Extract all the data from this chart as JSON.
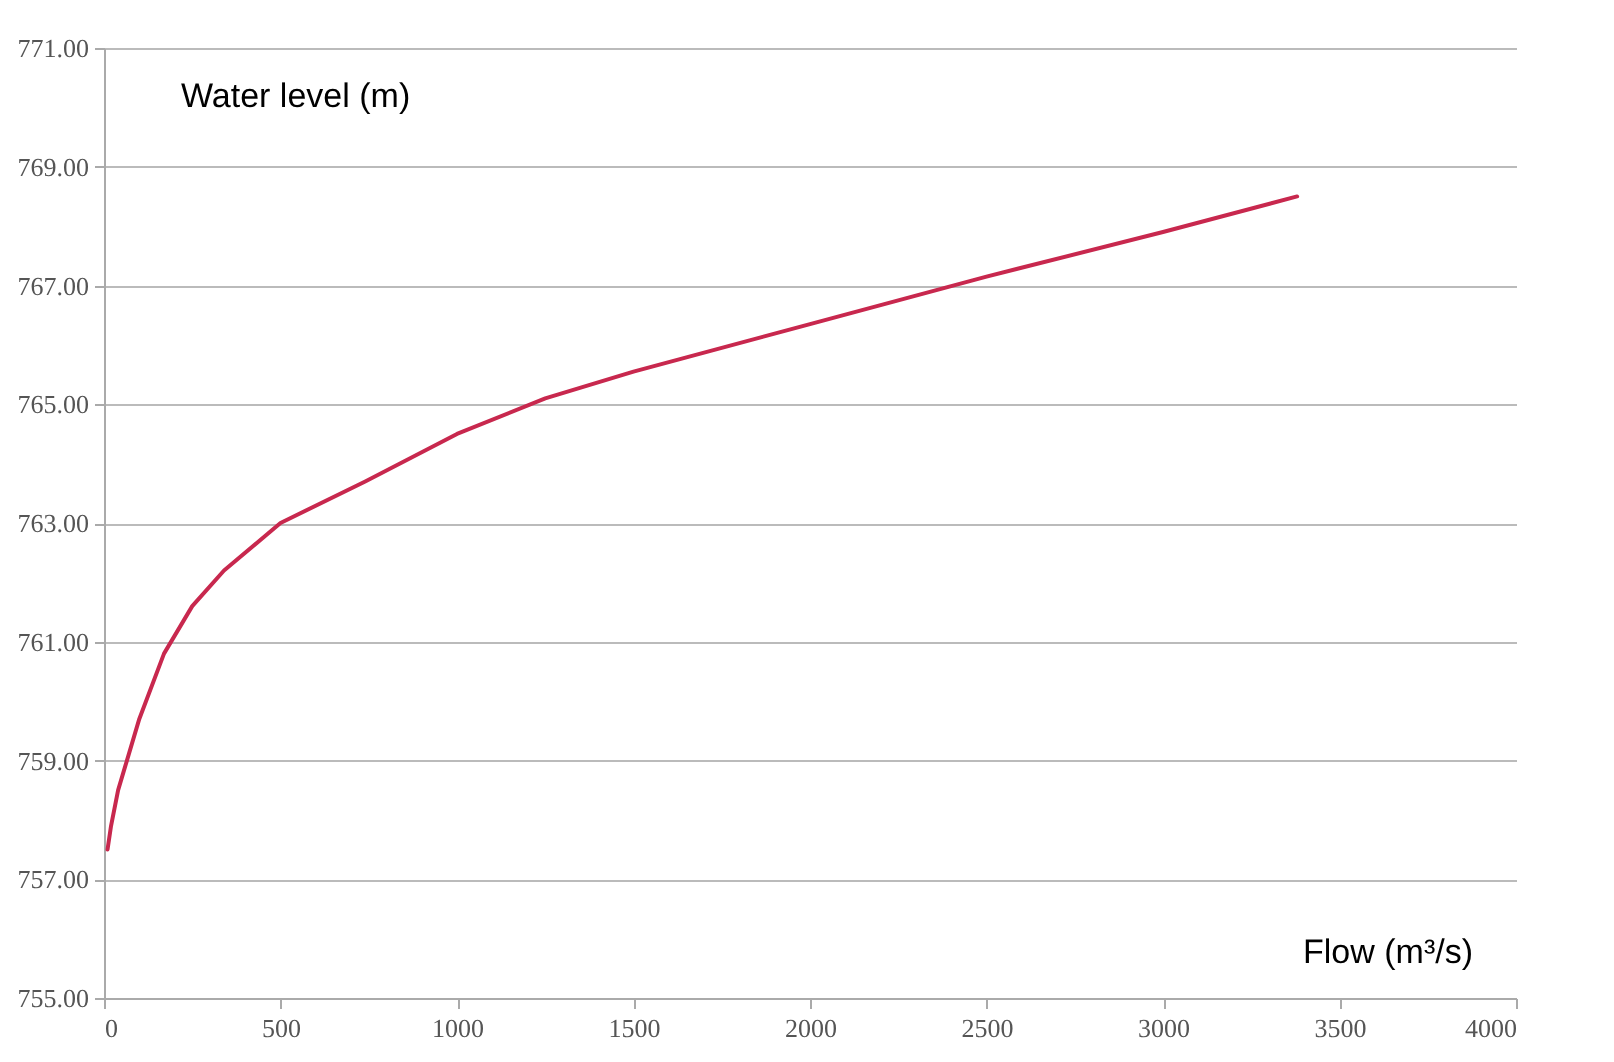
{
  "chart_data": {
    "type": "line",
    "xlabel": "Flow (m³/s)",
    "ylabel": "Water level (m)",
    "x": [
      10,
      20,
      40,
      60,
      100,
      170,
      250,
      340,
      500,
      740,
      1000,
      1250,
      1500,
      2000,
      2500,
      3000,
      3380
    ],
    "series": [
      {
        "color": "#c8284e",
        "values": [
          757.5,
          757.9,
          758.5,
          758.9,
          759.7,
          760.8,
          761.6,
          762.2,
          763.0,
          763.7,
          764.5,
          765.1,
          765.55,
          766.35,
          767.15,
          767.9,
          768.5
        ]
      }
    ],
    "xlim": [
      0,
      4000
    ],
    "xticks": [
      0,
      500,
      1000,
      1500,
      2000,
      2500,
      3000,
      3500,
      4000
    ],
    "ylim": [
      755,
      771
    ],
    "yticks": [
      {
        "value": 755,
        "label": "755.00"
      },
      {
        "value": 757,
        "label": "757.00"
      },
      {
        "value": 759,
        "label": "759.00"
      },
      {
        "value": 761,
        "label": "761.00"
      },
      {
        "value": 763,
        "label": "763.00"
      },
      {
        "value": 765,
        "label": "765.00"
      },
      {
        "value": 767,
        "label": "767.00"
      },
      {
        "value": 769,
        "label": "769.00"
      },
      {
        "value": 771,
        "label": "771.00"
      }
    ],
    "grid": "y",
    "marker": "none",
    "line_style": "solid"
  }
}
